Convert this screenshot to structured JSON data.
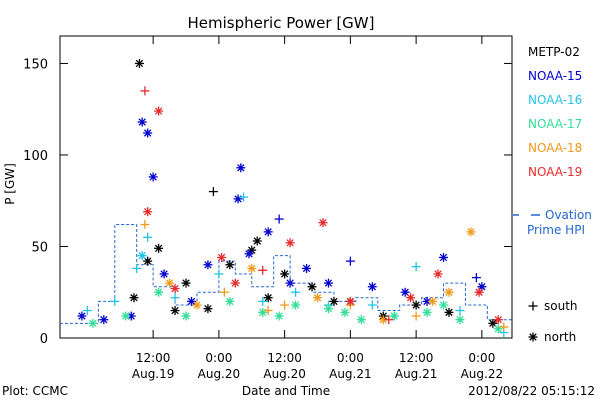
{
  "chart_data": {
    "type": "scatter",
    "title": "Hemispheric Power [GW]",
    "ylabel": "P [GW]",
    "xlabel": "Date and Time",
    "ylim": [
      0,
      165
    ],
    "xlim": [
      "2012-08-18T19:00",
      "2012-08-22T05:30"
    ],
    "yticks": [
      0,
      50,
      100,
      150
    ],
    "xticks": [
      {
        "time": "2012-08-19T12:00",
        "top": "12:00",
        "bottom": "Aug.19"
      },
      {
        "time": "2012-08-20T00:00",
        "top": "0:00",
        "bottom": "Aug.20"
      },
      {
        "time": "2012-08-20T12:00",
        "top": "12:00",
        "bottom": "Aug.20"
      },
      {
        "time": "2012-08-21T00:00",
        "top": "0:00",
        "bottom": "Aug.21"
      },
      {
        "time": "2012-08-21T12:00",
        "top": "12:00",
        "bottom": "Aug.21"
      },
      {
        "time": "2012-08-22T00:00",
        "top": "0:00",
        "bottom": "Aug.22"
      }
    ],
    "markers": {
      "south": "+",
      "north": "*"
    },
    "marker_legend": [
      {
        "symbol": "+",
        "label": "south"
      },
      {
        "symbol": "*",
        "label": "north"
      }
    ],
    "series": [
      {
        "name": "METP-02",
        "color": "#000000",
        "points": [
          [
            "2012-08-19T09:30",
            150,
            "north"
          ],
          [
            "2012-08-19T08:30",
            22,
            "north"
          ],
          [
            "2012-08-19T11:00",
            42,
            "north"
          ],
          [
            "2012-08-19T13:00",
            49,
            "north"
          ],
          [
            "2012-08-19T18:00",
            30,
            "north"
          ],
          [
            "2012-08-19T22:00",
            16,
            "north"
          ],
          [
            "2012-08-20T06:00",
            48,
            "north"
          ],
          [
            "2012-08-20T07:00",
            53,
            "north"
          ],
          [
            "2012-08-20T12:00",
            35,
            "north"
          ],
          [
            "2012-08-19T23:00",
            80,
            "south"
          ],
          [
            "2012-08-20T02:00",
            40,
            "north"
          ],
          [
            "2012-08-20T17:00",
            28,
            "north"
          ],
          [
            "2012-08-21T00:00",
            20,
            "north"
          ],
          [
            "2012-08-21T06:00",
            12,
            "north"
          ],
          [
            "2012-08-21T12:00",
            18,
            "north"
          ],
          [
            "2012-08-21T18:00",
            14,
            "north"
          ],
          [
            "2012-08-22T02:00",
            8,
            "north"
          ],
          [
            "2012-08-19T16:00",
            15,
            "north"
          ],
          [
            "2012-08-20T09:00",
            22,
            "north"
          ],
          [
            "2012-08-20T21:00",
            20,
            "north"
          ]
        ]
      },
      {
        "name": "NOAA-15",
        "color": "#0000cc",
        "points": [
          [
            "2012-08-19T10:00",
            118,
            "north"
          ],
          [
            "2012-08-19T11:00",
            112,
            "north"
          ],
          [
            "2012-08-19T12:00",
            88,
            "north"
          ],
          [
            "2012-08-19T14:00",
            35,
            "north"
          ],
          [
            "2012-08-20T04:00",
            93,
            "north"
          ],
          [
            "2012-08-20T03:30",
            76,
            "north"
          ],
          [
            "2012-08-20T05:30",
            46,
            "north"
          ],
          [
            "2012-08-20T09:00",
            58,
            "north"
          ],
          [
            "2012-08-20T11:00",
            65,
            "south"
          ],
          [
            "2012-08-20T16:00",
            38,
            "north"
          ],
          [
            "2012-08-20T20:00",
            30,
            "north"
          ],
          [
            "2012-08-21T00:00",
            42,
            "south"
          ],
          [
            "2012-08-21T04:00",
            28,
            "north"
          ],
          [
            "2012-08-21T10:00",
            25,
            "north"
          ],
          [
            "2012-08-21T17:00",
            44,
            "north"
          ],
          [
            "2012-08-21T23:00",
            33,
            "south"
          ],
          [
            "2012-08-19T19:00",
            20,
            "north"
          ],
          [
            "2012-08-19T22:00",
            40,
            "north"
          ],
          [
            "2012-08-20T13:00",
            30,
            "north"
          ],
          [
            "2012-08-21T14:00",
            20,
            "north"
          ],
          [
            "2012-08-22T00:00",
            28,
            "north"
          ],
          [
            "2012-08-19T08:00",
            12,
            "north"
          ],
          [
            "2012-08-19T03:00",
            10,
            "north"
          ],
          [
            "2012-08-18T23:00",
            12,
            "north"
          ]
        ]
      },
      {
        "name": "NOAA-16",
        "color": "#22c3e6",
        "points": [
          [
            "2012-08-19T10:00",
            45,
            "north"
          ],
          [
            "2012-08-19T11:00",
            55,
            "south"
          ],
          [
            "2012-08-19T09:00",
            38,
            "south"
          ],
          [
            "2012-08-20T04:30",
            77,
            "south"
          ],
          [
            "2012-08-20T00:00",
            35,
            "south"
          ],
          [
            "2012-08-20T14:00",
            25,
            "south"
          ],
          [
            "2012-08-21T12:00",
            39,
            "south"
          ],
          [
            "2012-08-21T04:00",
            18,
            "south"
          ],
          [
            "2012-08-19T05:00",
            20,
            "south"
          ],
          [
            "2012-08-19T00:00",
            15,
            "south"
          ],
          [
            "2012-08-20T20:00",
            18,
            "south"
          ],
          [
            "2012-08-21T20:00",
            15,
            "south"
          ],
          [
            "2012-08-22T04:00",
            3,
            "south"
          ],
          [
            "2012-08-19T16:00",
            22,
            "south"
          ],
          [
            "2012-08-20T08:00",
            20,
            "south"
          ],
          [
            "2012-08-21T08:00",
            12,
            "south"
          ]
        ]
      },
      {
        "name": "NOAA-17",
        "color": "#33dd99",
        "points": [
          [
            "2012-08-19T07:00",
            12,
            "north"
          ],
          [
            "2012-08-19T13:00",
            25,
            "north"
          ],
          [
            "2012-08-19T18:00",
            12,
            "north"
          ],
          [
            "2012-08-20T02:00",
            20,
            "north"
          ],
          [
            "2012-08-20T08:00",
            14,
            "north"
          ],
          [
            "2012-08-20T14:00",
            18,
            "north"
          ],
          [
            "2012-08-20T20:00",
            16,
            "north"
          ],
          [
            "2012-08-21T02:00",
            10,
            "north"
          ],
          [
            "2012-08-21T08:00",
            12,
            "north"
          ],
          [
            "2012-08-21T14:00",
            14,
            "north"
          ],
          [
            "2012-08-21T20:00",
            10,
            "north"
          ],
          [
            "2012-08-22T03:00",
            5,
            "north"
          ],
          [
            "2012-08-19T01:00",
            8,
            "north"
          ],
          [
            "2012-08-20T11:00",
            12,
            "north"
          ],
          [
            "2012-08-20T23:00",
            14,
            "north"
          ],
          [
            "2012-08-21T17:00",
            18,
            "north"
          ]
        ]
      },
      {
        "name": "NOAA-18",
        "color": "#f09a1a",
        "points": [
          [
            "2012-08-19T10:30",
            62,
            "south"
          ],
          [
            "2012-08-19T15:00",
            30,
            "north"
          ],
          [
            "2012-08-20T01:00",
            25,
            "south"
          ],
          [
            "2012-08-20T06:00",
            38,
            "north"
          ],
          [
            "2012-08-20T12:00",
            18,
            "south"
          ],
          [
            "2012-08-20T18:00",
            22,
            "north"
          ],
          [
            "2012-08-21T00:00",
            18,
            "south"
          ],
          [
            "2012-08-21T06:00",
            10,
            "north"
          ],
          [
            "2012-08-21T12:00",
            12,
            "south"
          ],
          [
            "2012-08-21T18:00",
            25,
            "north"
          ],
          [
            "2012-08-21T22:00",
            58,
            "north"
          ],
          [
            "2012-08-22T04:00",
            6,
            "south"
          ],
          [
            "2012-08-19T20:00",
            18,
            "north"
          ],
          [
            "2012-08-20T09:00",
            15,
            "south"
          ],
          [
            "2012-08-21T15:00",
            20,
            "north"
          ]
        ]
      },
      {
        "name": "NOAA-19",
        "color": "#e62a2a",
        "points": [
          [
            "2012-08-19T10:30",
            135,
            "south"
          ],
          [
            "2012-08-19T13:00",
            124,
            "north"
          ],
          [
            "2012-08-19T11:00",
            69,
            "north"
          ],
          [
            "2012-08-20T00:30",
            44,
            "north"
          ],
          [
            "2012-08-20T13:00",
            52,
            "north"
          ],
          [
            "2012-08-20T19:00",
            63,
            "north"
          ],
          [
            "2012-08-20T08:00",
            37,
            "south"
          ],
          [
            "2012-08-21T00:00",
            20,
            "north"
          ],
          [
            "2012-08-21T07:00",
            10,
            "south"
          ],
          [
            "2012-08-21T16:00",
            35,
            "north"
          ],
          [
            "2012-08-21T23:30",
            25,
            "north"
          ],
          [
            "2012-08-22T03:00",
            10,
            "north"
          ],
          [
            "2012-08-19T16:00",
            27,
            "north"
          ],
          [
            "2012-08-20T03:00",
            30,
            "north"
          ],
          [
            "2012-08-21T11:00",
            22,
            "north"
          ]
        ]
      }
    ],
    "ovation_line": {
      "name": "Ovation Prime HPI",
      "label_line1": "Ovation",
      "label_line2": "Prime HPI",
      "color": "#2468d0",
      "steps": [
        [
          "2012-08-18T19:00",
          8
        ],
        [
          "2012-08-19T02:00",
          20
        ],
        [
          "2012-08-19T05:00",
          62
        ],
        [
          "2012-08-19T09:00",
          40
        ],
        [
          "2012-08-19T12:00",
          28
        ],
        [
          "2012-08-19T16:00",
          18
        ],
        [
          "2012-08-19T20:00",
          25
        ],
        [
          "2012-08-20T00:00",
          42
        ],
        [
          "2012-08-20T03:00",
          35
        ],
        [
          "2012-08-20T06:00",
          28
        ],
        [
          "2012-08-20T10:00",
          45
        ],
        [
          "2012-08-20T13:00",
          30
        ],
        [
          "2012-08-20T17:00",
          25
        ],
        [
          "2012-08-20T21:00",
          20
        ],
        [
          "2012-08-21T01:00",
          22
        ],
        [
          "2012-08-21T05:00",
          15
        ],
        [
          "2012-08-21T09:00",
          18
        ],
        [
          "2012-08-21T13:00",
          22
        ],
        [
          "2012-08-21T17:00",
          30
        ],
        [
          "2012-08-21T21:00",
          18
        ],
        [
          "2012-08-22T01:00",
          10
        ],
        [
          "2012-08-22T05:30",
          10
        ]
      ]
    }
  },
  "footer": {
    "plot_credit": "Plot: CCMC",
    "timestamp": "2012/08/22 05:15:12"
  }
}
